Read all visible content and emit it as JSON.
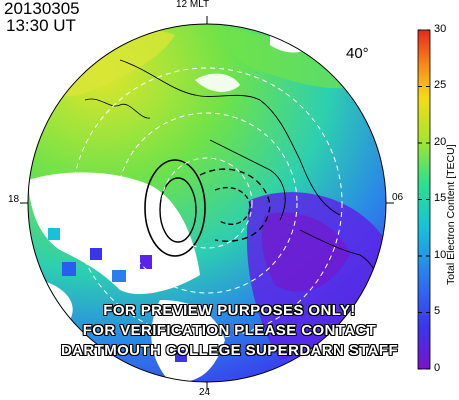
{
  "header": {
    "date": "20130305",
    "time": "13:30 UT"
  },
  "mlt_labels": {
    "top": "12 MLT",
    "right": "06",
    "left": "18",
    "bottom": "24"
  },
  "latitude_label": "40°",
  "colorbar": {
    "title": "Total Electron Content [TECU]",
    "ticks": [
      "0",
      "5",
      "10",
      "15",
      "20",
      "25",
      "30"
    ],
    "min": 0,
    "max": 30,
    "colors": [
      "#7a12c9",
      "#3b34ee",
      "#2a7ef0",
      "#15c3d7",
      "#2ee08a",
      "#a8e62a",
      "#f4dc17",
      "#f7861a",
      "#e5281d"
    ]
  },
  "watermark": {
    "line1": "FOR PREVIEW PURPOSES ONLY!",
    "line2": "FOR VERIFICATION PLEASE CONTACT",
    "line3": "DARTMOUTH COLLEGE SUPERDARN STAFF"
  }
}
